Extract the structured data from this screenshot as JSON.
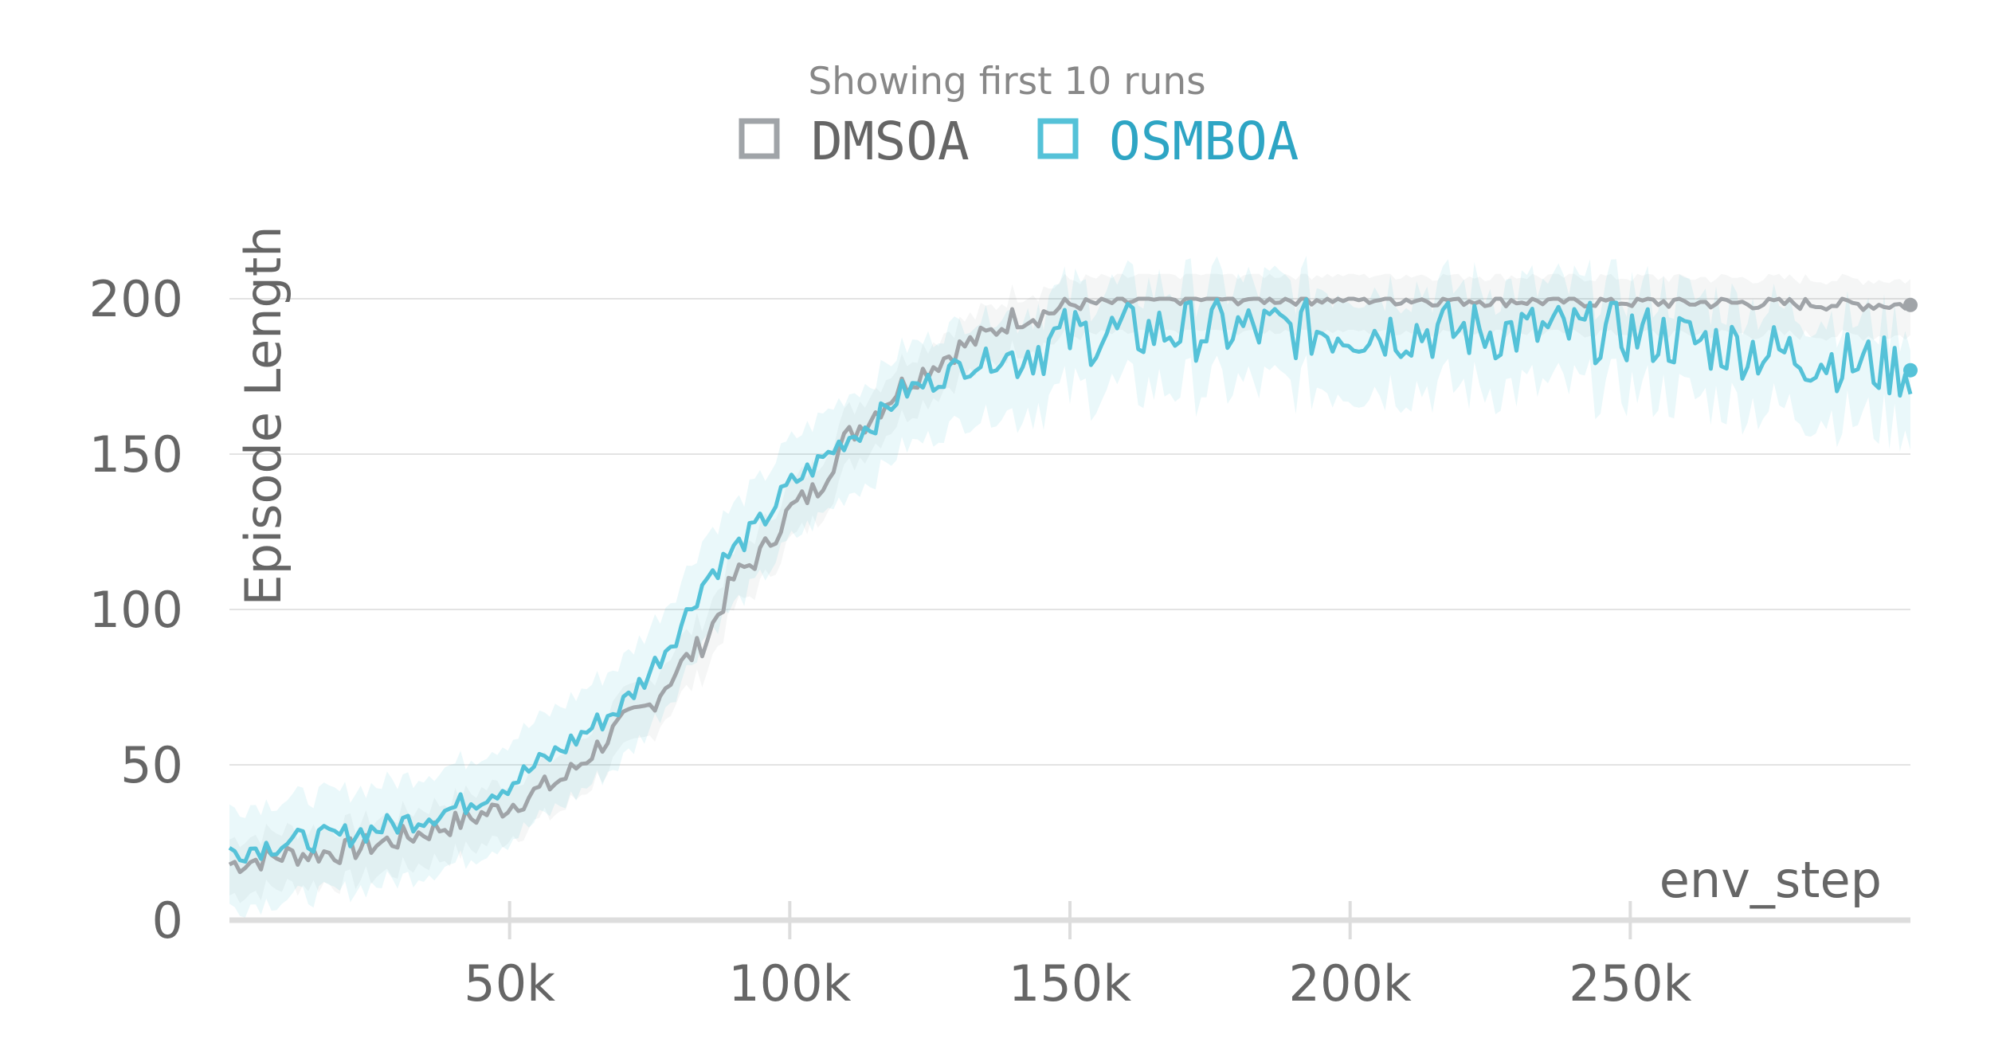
{
  "chart_data": {
    "type": "line",
    "note": "Showing first 10 runs",
    "xlabel": "env_step",
    "ylabel": "Episode Length",
    "xlim": [
      0,
      300000
    ],
    "ylim": [
      0,
      200
    ],
    "x_ticks": [
      50000,
      100000,
      150000,
      200000,
      250000
    ],
    "x_tick_labels": [
      "50k",
      "100k",
      "150k",
      "200k",
      "250k"
    ],
    "y_ticks": [
      0,
      50,
      100,
      150,
      200
    ],
    "y_tick_labels": [
      "0",
      "50",
      "100",
      "150",
      "200"
    ],
    "grid": "horizontal",
    "legend_position": "top-center",
    "band": "shaded range around each series",
    "series": [
      {
        "name": "DMSOA",
        "color": "#a0a4a8",
        "points": [
          [
            0,
            18
          ],
          [
            10000,
            21
          ],
          [
            20000,
            22
          ],
          [
            30000,
            26
          ],
          [
            40000,
            31
          ],
          [
            50000,
            37
          ],
          [
            60000,
            46
          ],
          [
            70000,
            63
          ],
          [
            75000,
            69
          ],
          [
            80000,
            81
          ],
          [
            85000,
            90
          ],
          [
            90000,
            110
          ],
          [
            95000,
            118
          ],
          [
            100000,
            132
          ],
          [
            105000,
            139
          ],
          [
            110000,
            155
          ],
          [
            115000,
            163
          ],
          [
            120000,
            172
          ],
          [
            125000,
            178
          ],
          [
            130000,
            184
          ],
          [
            135000,
            188
          ],
          [
            140000,
            194
          ],
          [
            145000,
            195
          ],
          [
            150000,
            198
          ],
          [
            160000,
            199
          ],
          [
            170000,
            200
          ],
          [
            200000,
            200
          ],
          [
            250000,
            199
          ],
          [
            300000,
            198
          ]
        ]
      },
      {
        "name": "OSMBOA",
        "color": "#55c2d8",
        "points": [
          [
            0,
            22
          ],
          [
            10000,
            25
          ],
          [
            20000,
            27
          ],
          [
            30000,
            31
          ],
          [
            40000,
            36
          ],
          [
            50000,
            44
          ],
          [
            60000,
            56
          ],
          [
            70000,
            69
          ],
          [
            75000,
            80
          ],
          [
            80000,
            93
          ],
          [
            85000,
            110
          ],
          [
            90000,
            119
          ],
          [
            95000,
            128
          ],
          [
            100000,
            140
          ],
          [
            105000,
            147
          ],
          [
            110000,
            155
          ],
          [
            115000,
            160
          ],
          [
            120000,
            170
          ],
          [
            125000,
            173
          ],
          [
            130000,
            178
          ],
          [
            135000,
            180
          ],
          [
            140000,
            182
          ],
          [
            145000,
            185
          ],
          [
            150000,
            188
          ],
          [
            160000,
            189
          ],
          [
            170000,
            190
          ],
          [
            200000,
            190
          ],
          [
            250000,
            189
          ],
          [
            300000,
            177
          ]
        ]
      }
    ]
  }
}
